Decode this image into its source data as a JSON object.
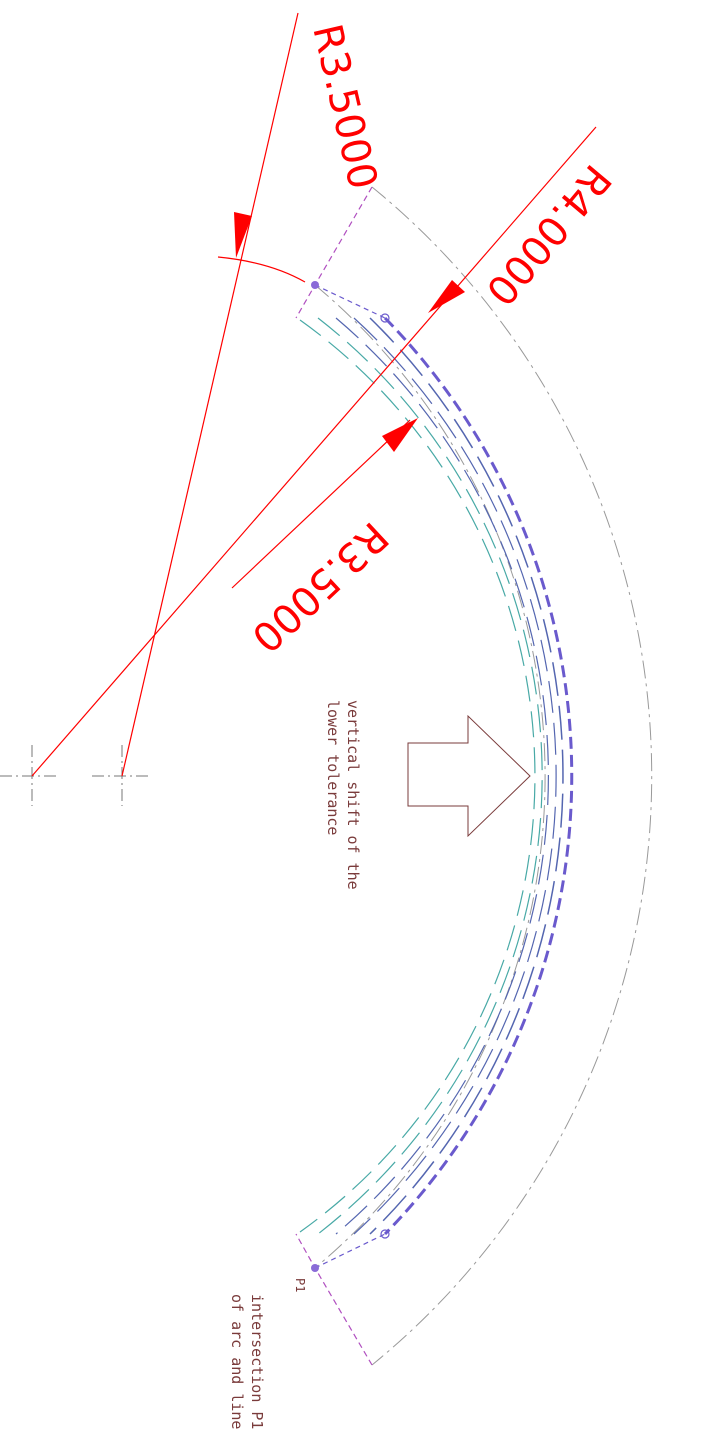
{
  "dimensions": {
    "r_top": "R3.5000",
    "r_mid": "R4.0000",
    "r_low": "R3.5000"
  },
  "notes": {
    "shift_line1": "vertical shift of the",
    "shift_line2": "lower tolerance",
    "intersect_line1": "intersection P1",
    "intersect_line2": "of arc and line",
    "point_label": "P1"
  },
  "colors": {
    "dimension": "#ff0000",
    "arc_main": "#6a5acd",
    "arc_teal": "#48a9a6",
    "arc_slate": "#5466b0",
    "construction": "#999999",
    "boundary": "#b04fc0",
    "note": "#7a3b3b"
  }
}
